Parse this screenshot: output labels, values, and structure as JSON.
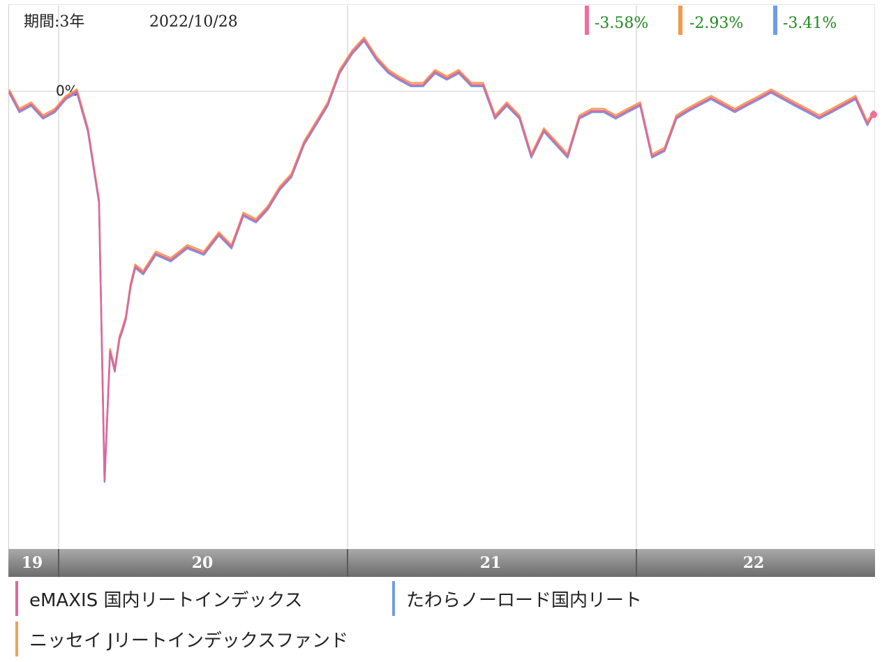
{
  "header": {
    "period": "期間:3年",
    "date": "2022/10/28",
    "returns": [
      {
        "value": "-3.58%",
        "color": "#f06e9c"
      },
      {
        "value": "-2.93%",
        "color": "#f39a4b"
      },
      {
        "value": "-3.41%",
        "color": "#6f9de6"
      }
    ]
  },
  "zero_label": "0%",
  "years": [
    "19",
    "20",
    "21",
    "22"
  ],
  "legend": [
    {
      "label": "eMAXIS 国内リートインデックス",
      "color": "#e0669a"
    },
    {
      "label": "たわらノーロード国内リート",
      "color": "#6f9de6"
    },
    {
      "label": "ニッセイ Jリートインデックスファンド",
      "color": "#f0a15c"
    }
  ],
  "chart_data": {
    "type": "line",
    "x_range": [
      "2019-10-28",
      "2022-10-28"
    ],
    "y_reference": 0,
    "series": [
      {
        "name": "eMAXIS 国内リートインデックス",
        "color": "#e0669a",
        "x": [
          "2019-10-28",
          "2019-11-10",
          "2019-11-25",
          "2019-12-10",
          "2019-12-25",
          "2020-01-08",
          "2020-01-22",
          "2020-02-05",
          "2020-02-19",
          "2020-02-26",
          "2020-03-04",
          "2020-03-10",
          "2020-03-16",
          "2020-03-19",
          "2020-03-24",
          "2020-03-30",
          "2020-04-05",
          "2020-04-15",
          "2020-05-01",
          "2020-05-20",
          "2020-06-10",
          "2020-07-01",
          "2020-07-20",
          "2020-08-05",
          "2020-08-20",
          "2020-09-05",
          "2020-09-20",
          "2020-10-05",
          "2020-10-20",
          "2020-11-05",
          "2020-11-20",
          "2020-12-05",
          "2020-12-20",
          "2021-01-05",
          "2021-01-20",
          "2021-02-05",
          "2021-02-20",
          "2021-03-05",
          "2021-03-20",
          "2021-04-05",
          "2021-04-20",
          "2021-05-05",
          "2021-05-20",
          "2021-06-05",
          "2021-06-20",
          "2021-07-05",
          "2021-07-20",
          "2021-08-05",
          "2021-08-20",
          "2021-09-05",
          "2021-09-20",
          "2021-10-05",
          "2021-10-20",
          "2021-11-05",
          "2021-11-20",
          "2021-12-05",
          "2021-12-20",
          "2022-01-05",
          "2022-01-20",
          "2022-02-05",
          "2022-02-20",
          "2022-03-05",
          "2022-03-20",
          "2022-04-05",
          "2022-04-20",
          "2022-05-05",
          "2022-05-20",
          "2022-06-05",
          "2022-06-20",
          "2022-07-05",
          "2022-07-20",
          "2022-08-05",
          "2022-08-20",
          "2022-09-05",
          "2022-09-20",
          "2022-10-05",
          "2022-10-20",
          "2022-10-28"
        ],
        "y": [
          0,
          -3,
          -2,
          -4,
          -3,
          -1,
          0,
          -6,
          -17,
          -60,
          -40,
          -43,
          -38,
          -37,
          -35,
          -30,
          -27,
          -28,
          -25,
          -26,
          -24,
          -25,
          -22,
          -24,
          -19,
          -20,
          -18,
          -15,
          -13,
          -8,
          -5,
          -2,
          3,
          6,
          8,
          5,
          3,
          2,
          1,
          1,
          3,
          2,
          3,
          1,
          1,
          -4,
          -2,
          -4,
          -10,
          -6,
          -8,
          -10,
          -4,
          -3,
          -3,
          -4,
          -3,
          -2,
          -10,
          -9,
          -4,
          -3,
          -2,
          -1,
          -2,
          -3,
          -2,
          -1,
          0,
          -1,
          -2,
          -3,
          -4,
          -3,
          -2,
          -1,
          -5,
          -3.58
        ]
      },
      {
        "name": "ニッセイ Jリートインデックスファンド",
        "color": "#f0a15c",
        "x": [
          "2019-10-28",
          "2020-03-19",
          "2020-06-10",
          "2021-01-05",
          "2021-06-05",
          "2022-01-05",
          "2022-07-05",
          "2022-10-28"
        ],
        "y": [
          0,
          -37,
          -23.5,
          6.5,
          1.5,
          -1.5,
          0.5,
          -2.93
        ]
      },
      {
        "name": "たわらノーロード国内リート",
        "color": "#6f9de6",
        "x": [
          "2019-10-28",
          "2020-03-19",
          "2020-06-10",
          "2021-01-05",
          "2021-06-05",
          "2022-01-05",
          "2022-07-05",
          "2022-10-28"
        ],
        "y": [
          0,
          -37,
          -24,
          6,
          1,
          -2,
          0,
          -3.41
        ]
      }
    ]
  }
}
